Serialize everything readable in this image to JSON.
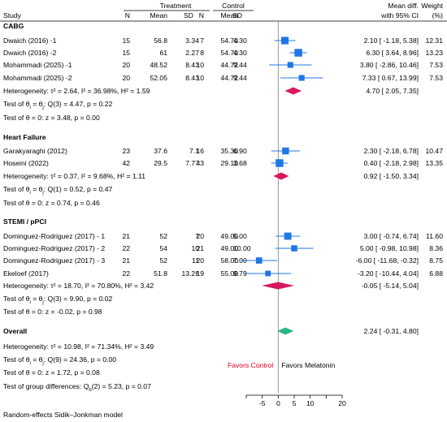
{
  "header": {
    "study": "Study",
    "treatment": "Treatment",
    "control": "Control",
    "n": "N",
    "mean": "Mean",
    "sd": "SD",
    "effect_line1": "Mean diff.",
    "effect_line2": "with 95% CI",
    "weight_line1": "Weight",
    "weight_line2": "(%)"
  },
  "chart_data": {
    "type": "forest",
    "x_ticks": [
      -10,
      -5,
      0,
      5,
      10,
      15,
      20
    ],
    "x_range": [
      -10,
      20
    ],
    "null_line": 0,
    "groups": [
      {
        "name": "CABG",
        "studies": [
          {
            "label": "Dwaich (2016) -1",
            "t_n": "15",
            "t_mean": "56.8",
            "t_sd": "3.34",
            "c_n": "7",
            "c_mean": "54.70",
            "c_sd": "4.30",
            "est": 2.1,
            "lo": -1.18,
            "hi": 5.38,
            "ci_text": "2.10 [  -1.18,   5.38]",
            "weight": "12.31",
            "w": 12.31
          },
          {
            "label": "Dwaich (2016) -2",
            "t_n": "15",
            "t_mean": "61",
            "t_sd": "2.27",
            "c_n": "8",
            "c_mean": "54.70",
            "c_sd": "4.30",
            "est": 6.3,
            "lo": 3.64,
            "hi": 8.96,
            "ci_text": "6.30 [   3.64,   8.96]",
            "weight": "13.23",
            "w": 13.23
          },
          {
            "label": "Mohammadi (2025) -1",
            "t_n": "20",
            "t_mean": "48.52",
            "t_sd": "8.43",
            "c_n": "10",
            "c_mean": "44.72",
            "c_sd": "9.44",
            "est": 3.8,
            "lo": -2.86,
            "hi": 10.46,
            "ci_text": "3.80 [  -2.86,  10.46]",
            "weight": "7.53",
            "w": 7.53
          },
          {
            "label": "Mohammadi (2025) -2",
            "t_n": "20",
            "t_mean": "52.05",
            "t_sd": "8.43",
            "c_n": "10",
            "c_mean": "44.72",
            "c_sd": "9.44",
            "est": 7.33,
            "lo": 0.67,
            "hi": 13.99,
            "ci_text": "7.33 [   0.67,  13.99]",
            "weight": "7.53",
            "w": 7.53
          }
        ],
        "pooled": {
          "est": 4.7,
          "lo": 2.05,
          "hi": 7.35,
          "ci_text": "4.70 [   2.05,   7.35]"
        },
        "heterogeneity": "Heterogeneity: τ² = 2.64, I² = 36.98%, H² = 1.59",
        "test_homog": [
          "Test of θᵢ = θⱼ: Q(3) = 4.47, p = 0.22"
        ],
        "test_zero": "Test of θ = 0: z = 3.48, p = 0.00"
      },
      {
        "name": "Heart Failure",
        "studies": [
          {
            "label": "Garakyaraghi (2012)",
            "t_n": "23",
            "t_mean": "37.6",
            "t_sd": "7.1",
            "c_n": "16",
            "c_mean": "35.30",
            "c_sd": "6.90",
            "est": 2.3,
            "lo": -2.18,
            "hi": 6.78,
            "ci_text": "2.30 [  -2.18,   6.78]",
            "weight": "10.47",
            "w": 10.47
          },
          {
            "label": "Hoseini (2022)",
            "t_n": "42",
            "t_mean": "29.5",
            "t_sd": "7.77",
            "c_n": "43",
            "c_mean": "29.10",
            "c_sd": "3.68",
            "est": 0.4,
            "lo": -2.18,
            "hi": 2.98,
            "ci_text": "0.40 [  -2.18,   2.98]",
            "weight": "13.35",
            "w": 13.35
          }
        ],
        "pooled": {
          "est": 0.92,
          "lo": -1.5,
          "hi": 3.34,
          "ci_text": "0.92 [  -1.50,   3.34]"
        },
        "heterogeneity": "Heterogeneity: τ² = 0.37, I² = 9.68%, H² = 1.11",
        "test_homog": [
          "Test of θᵢ = θⱼ: Q(1) = 0.52, p = 0.47"
        ],
        "test_zero": "Test of θ = 0: z = 0.74, p = 0.46"
      },
      {
        "name": "STEMI / pPCI",
        "studies": [
          {
            "label": "Dominguez-Rodriguez (2017) - 1",
            "t_n": "21",
            "t_mean": "52",
            "t_sd": "7",
            "c_n": "20",
            "c_mean": "49.00",
            "c_sd": "5.00",
            "est": 3.0,
            "lo": -0.74,
            "hi": 6.74,
            "ci_text": "3.00 [  -0.74,   6.74]",
            "weight": "11.60",
            "w": 11.6
          },
          {
            "label": "Dominguez-Rodriguez (2017) - 2",
            "t_n": "22",
            "t_mean": "54",
            "t_sd": "10",
            "c_n": "21",
            "c_mean": "49.00",
            "c_sd": "10.00",
            "est": 5.0,
            "lo": -0.98,
            "hi": 10.98,
            "ci_text": "5.00 [  -0.98,  10.98]",
            "weight": "8.36",
            "w": 8.36
          },
          {
            "label": "Dominguez-Rodriguez (2017) - 3",
            "t_n": "21",
            "t_mean": "52",
            "t_sd": "11",
            "c_n": "20",
            "c_mean": "58.00",
            "c_sd": "7.00",
            "est": -6.0,
            "lo": -11.68,
            "hi": -0.32,
            "ci_text": "-6.00 [ -11.68,  -0.32]",
            "weight": "8.75",
            "w": 8.75
          },
          {
            "label": "Ekeloef (2017)",
            "t_n": "22",
            "t_mean": "51.8",
            "t_sd": "13.28",
            "c_n": "19",
            "c_mean": "55.00",
            "c_sd": "9.79",
            "est": -3.2,
            "lo": -10.44,
            "hi": 4.04,
            "ci_text": "-3.20 [ -10.44,   4.04]",
            "weight": "6.88",
            "w": 6.88
          }
        ],
        "pooled": {
          "est": -0.05,
          "lo": -5.14,
          "hi": 5.04,
          "ci_text": "-0.05 [  -5.14,   5.04]"
        },
        "heterogeneity": "Heterogeneity: τ² = 18.70, I² = 70.80%, H² = 3.42",
        "test_homog": [
          "Test of θᵢ = θⱼ: Q(3) = 9.90, p = 0.02"
        ],
        "test_zero": "Test of θ = 0: z = -0.02, p = 0.98"
      }
    ],
    "overall": {
      "name": "Overall",
      "pooled": {
        "est": 2.24,
        "lo": -0.31,
        "hi": 4.8,
        "ci_text": "2.24 [  -0.31,   4.80]"
      },
      "heterogeneity": "Heterogeneity: τ² = 10.98, I² = 71.34%, H² = 3.49",
      "test_homog": "Test of θᵢ = θⱼ: Q(9) = 24.36, p = 0.00",
      "test_zero": "Test of θ = 0: z = 1.72, p = 0.08"
    },
    "group_test": "Test of group differences: Qb(2) = 5.23, p = 0.07",
    "favors_left": "Favors Control",
    "favors_right": "Favors Melatonin",
    "footnote": "Random-effects Sidik–Jonkman model",
    "colors": {
      "study_marker": "#1f77e4",
      "ci_line": "#1f77e4",
      "subgroup_diamond": "#d6195f",
      "overall_diamond": "#2bb585",
      "favors_left": "#e0001b",
      "favors_right": "#000000",
      "null_line": "#7f7f7f"
    }
  }
}
